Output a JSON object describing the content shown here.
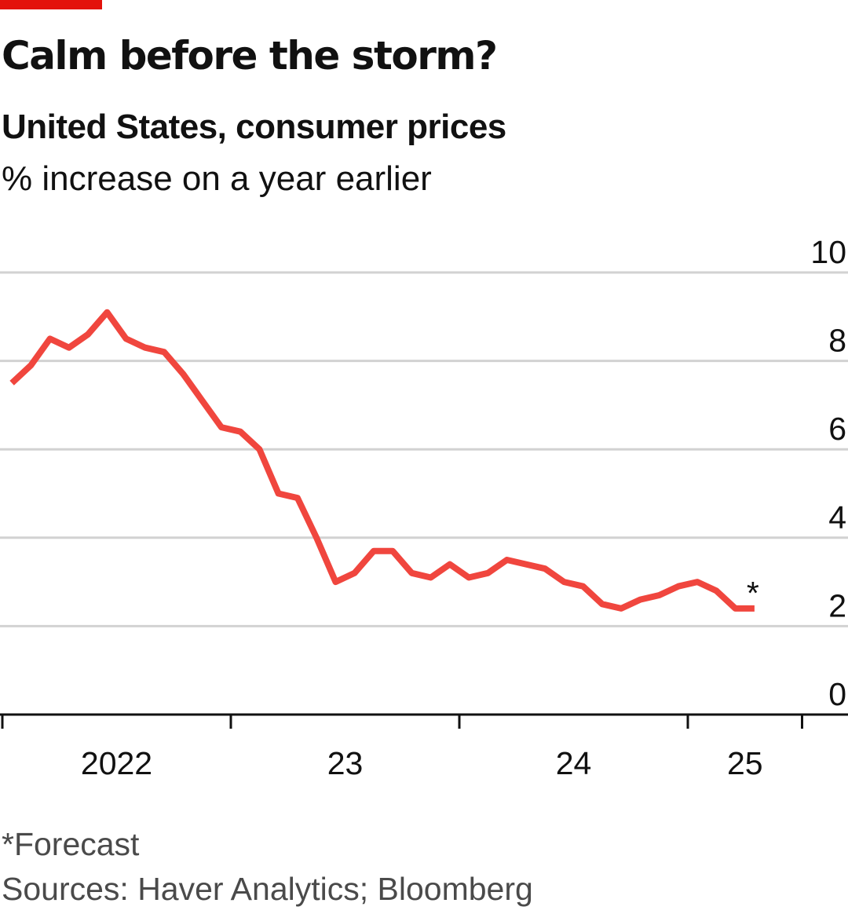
{
  "colors": {
    "accent": "#e3120b",
    "line": "#f0463e",
    "grid": "#d2d2d2",
    "axis": "#111111",
    "footer_text": "#4a4a4a"
  },
  "title": "Calm before the storm?",
  "subtitle": "United States, consumer prices",
  "unit_label": "% increase on a year earlier",
  "footnote": "*Forecast",
  "source": "Sources: Haver Analytics; Bloomberg",
  "chart_data": {
    "type": "line",
    "title": "Calm before the storm?",
    "subtitle": "United States, consumer prices",
    "ylabel": "% increase on a year earlier",
    "ylim": [
      0,
      10
    ],
    "yticks": [
      "0",
      "2",
      "4",
      "6",
      "8",
      "10"
    ],
    "y_axis_side": "right",
    "grid": true,
    "x_tick_labels": [
      {
        "label": "2022",
        "date": "2022-07"
      },
      {
        "label": "23",
        "date": "2023-07"
      },
      {
        "label": "24",
        "date": "2024-07"
      },
      {
        "label": "25",
        "date": "2025-04"
      }
    ],
    "x_year_boundaries": [
      "2022-01",
      "2023-01",
      "2024-01",
      "2025-01",
      "2025-07"
    ],
    "series": [
      {
        "values": [
          {
            "x": "2022-01",
            "y": 7.5
          },
          {
            "x": "2022-02",
            "y": 7.9
          },
          {
            "x": "2022-03",
            "y": 8.5
          },
          {
            "x": "2022-04",
            "y": 8.3
          },
          {
            "x": "2022-05",
            "y": 8.6
          },
          {
            "x": "2022-06",
            "y": 9.1
          },
          {
            "x": "2022-07",
            "y": 8.5
          },
          {
            "x": "2022-08",
            "y": 8.3
          },
          {
            "x": "2022-09",
            "y": 8.2
          },
          {
            "x": "2022-10",
            "y": 7.7
          },
          {
            "x": "2022-11",
            "y": 7.1
          },
          {
            "x": "2022-12",
            "y": 6.5
          },
          {
            "x": "2023-01",
            "y": 6.4
          },
          {
            "x": "2023-02",
            "y": 6.0
          },
          {
            "x": "2023-03",
            "y": 5.0
          },
          {
            "x": "2023-04",
            "y": 4.9
          },
          {
            "x": "2023-05",
            "y": 4.0
          },
          {
            "x": "2023-06",
            "y": 3.0
          },
          {
            "x": "2023-07",
            "y": 3.2
          },
          {
            "x": "2023-08",
            "y": 3.7
          },
          {
            "x": "2023-09",
            "y": 3.7
          },
          {
            "x": "2023-10",
            "y": 3.2
          },
          {
            "x": "2023-11",
            "y": 3.1
          },
          {
            "x": "2023-12",
            "y": 3.4
          },
          {
            "x": "2024-01",
            "y": 3.1
          },
          {
            "x": "2024-02",
            "y": 3.2
          },
          {
            "x": "2024-03",
            "y": 3.5
          },
          {
            "x": "2024-04",
            "y": 3.4
          },
          {
            "x": "2024-05",
            "y": 3.3
          },
          {
            "x": "2024-06",
            "y": 3.0
          },
          {
            "x": "2024-07",
            "y": 2.9
          },
          {
            "x": "2024-08",
            "y": 2.5
          },
          {
            "x": "2024-09",
            "y": 2.4
          },
          {
            "x": "2024-10",
            "y": 2.6
          },
          {
            "x": "2024-11",
            "y": 2.7
          },
          {
            "x": "2024-12",
            "y": 2.9
          },
          {
            "x": "2025-01",
            "y": 3.0
          },
          {
            "x": "2025-02",
            "y": 2.8
          },
          {
            "x": "2025-03",
            "y": 2.4
          },
          {
            "x": "2025-04",
            "y": 2.4
          }
        ],
        "forecast_marker": "*"
      }
    ]
  }
}
